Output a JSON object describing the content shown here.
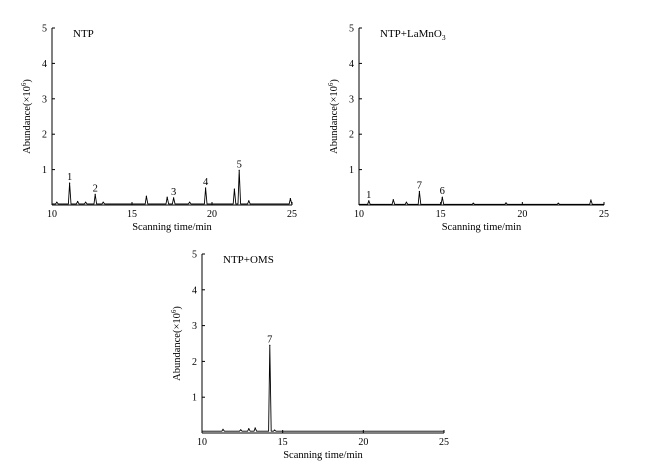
{
  "chart_data": [
    {
      "type": "line",
      "title": "NTP",
      "title_sup": "",
      "xlabel": "Scanning time/min",
      "ylabel_prefix": "Abundance(×10",
      "ylabel_sup": "6",
      "ylabel_suffix": ")",
      "xlim": [
        10,
        25
      ],
      "ylim": [
        0,
        5
      ],
      "xticks": [
        10,
        15,
        20,
        25
      ],
      "yticks": [
        1,
        2,
        3,
        4,
        5
      ],
      "baseline": 0.03,
      "peaks": [
        {
          "x": 10.3,
          "y": 0.08
        },
        {
          "x": 11.1,
          "y": 0.62,
          "label": "1"
        },
        {
          "x": 11.6,
          "y": 0.1
        },
        {
          "x": 12.1,
          "y": 0.08
        },
        {
          "x": 12.7,
          "y": 0.3,
          "label": "2"
        },
        {
          "x": 13.2,
          "y": 0.08
        },
        {
          "x": 15.9,
          "y": 0.25
        },
        {
          "x": 17.2,
          "y": 0.22
        },
        {
          "x": 17.6,
          "y": 0.2,
          "label": "3"
        },
        {
          "x": 18.6,
          "y": 0.08
        },
        {
          "x": 19.6,
          "y": 0.48,
          "label": "4"
        },
        {
          "x": 21.4,
          "y": 0.45
        },
        {
          "x": 21.7,
          "y": 0.98,
          "label": "5"
        },
        {
          "x": 22.3,
          "y": 0.12
        },
        {
          "x": 24.9,
          "y": 0.18
        }
      ]
    },
    {
      "type": "line",
      "title": "NTP+LaMnO",
      "title_sub": "3",
      "xlabel": "Scanning time/min",
      "ylabel_prefix": "Abundance(×10",
      "ylabel_sup": "6",
      "ylabel_suffix": ")",
      "xlim": [
        10,
        25
      ],
      "ylim": [
        0,
        5
      ],
      "xticks": [
        10,
        15,
        20,
        25
      ],
      "yticks": [
        1,
        2,
        3,
        4,
        5
      ],
      "baseline": 0.02,
      "peaks": [
        {
          "x": 10.6,
          "y": 0.12,
          "label": "1"
        },
        {
          "x": 12.1,
          "y": 0.15
        },
        {
          "x": 12.9,
          "y": 0.08
        },
        {
          "x": 13.7,
          "y": 0.38,
          "label": "7"
        },
        {
          "x": 15.1,
          "y": 0.22,
          "label": "6"
        },
        {
          "x": 17.0,
          "y": 0.05
        },
        {
          "x": 19.0,
          "y": 0.06
        },
        {
          "x": 22.2,
          "y": 0.05
        },
        {
          "x": 24.2,
          "y": 0.14
        }
      ]
    },
    {
      "type": "line",
      "title": "NTP+OMS",
      "title_sup": "",
      "xlabel": "Scanning time/min",
      "ylabel_prefix": "Abundance(×10",
      "ylabel_sup": "6",
      "ylabel_suffix": ")",
      "xlim": [
        10,
        25
      ],
      "ylim": [
        0,
        5
      ],
      "xticks": [
        10,
        15,
        20,
        25
      ],
      "yticks": [
        1,
        2,
        3,
        4,
        5
      ],
      "baseline": 0.05,
      "peaks": [
        {
          "x": 11.3,
          "y": 0.1
        },
        {
          "x": 12.4,
          "y": 0.09
        },
        {
          "x": 12.9,
          "y": 0.12
        },
        {
          "x": 13.3,
          "y": 0.14
        },
        {
          "x": 14.2,
          "y": 2.45,
          "label": "7"
        },
        {
          "x": 14.5,
          "y": 0.08
        }
      ]
    }
  ]
}
